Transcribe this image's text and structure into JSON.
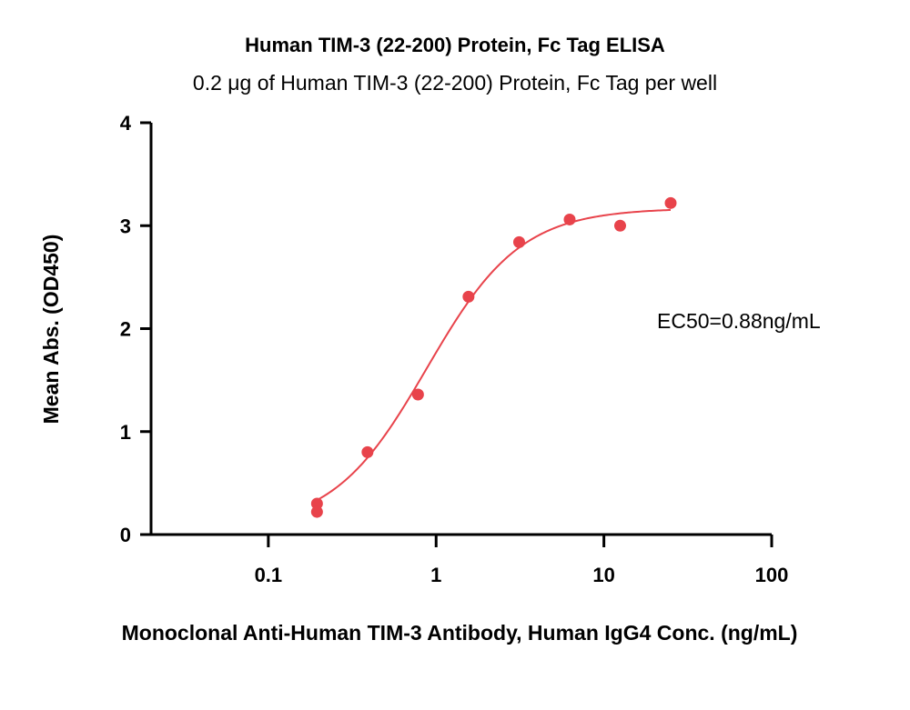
{
  "chart_data": {
    "type": "scatter",
    "title": "Human TIM-3 (22-200) Protein, Fc Tag ELISA",
    "subtitle": "0.2 μg of Human TIM-3 (22-200) Protein, Fc Tag per well",
    "xlabel": "Monoclonal Anti-Human TIM-3 Antibody, Human IgG4 Conc. (ng/mL)",
    "ylabel": "Mean Abs. (OD450)",
    "x_scale": "log",
    "xlim": [
      0.02,
      100
    ],
    "ylim": [
      0,
      4
    ],
    "x_ticks": [
      0.1,
      1,
      10,
      100
    ],
    "x_tick_labels": [
      "0.1",
      "1",
      "10",
      "100"
    ],
    "y_ticks": [
      0,
      1,
      2,
      3,
      4
    ],
    "y_tick_labels": [
      "0",
      "1",
      "2",
      "3",
      "4"
    ],
    "grid": false,
    "annotation": "EC50=0.88ng/mL",
    "colors": {
      "series": "#e8434b",
      "axis": "#000000"
    },
    "series": [
      {
        "x": [
          0.195,
          0.195,
          0.39,
          0.78,
          1.56,
          3.125,
          6.25,
          12.5,
          25
        ],
        "y": [
          0.3,
          0.22,
          0.8,
          1.36,
          2.31,
          2.84,
          3.06,
          3.0,
          3.22
        ]
      }
    ],
    "fit": {
      "model": "4PL",
      "bottom": 0.06,
      "top": 3.17,
      "ec50": 0.88,
      "hill": 1.55,
      "x_range": [
        0.195,
        25
      ]
    }
  }
}
